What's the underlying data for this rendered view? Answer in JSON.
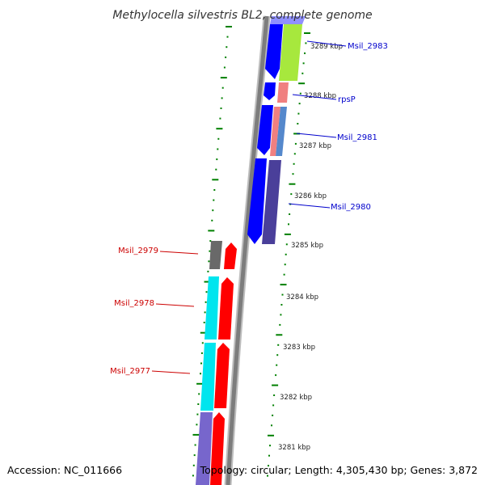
{
  "title": "Methylocella silvestris BL2, complete genome",
  "accession": "Accession: NC_011666",
  "topology": "Topology: circular; Length: 4,305,430 bp; Genes: 3,872",
  "colors": {
    "plus_strand": "#0000ff",
    "minus_strand": "#ff0000",
    "plus_label": "#0000cc",
    "minus_label": "#cc0000",
    "backbone": "#808080",
    "tick": "#008000"
  },
  "kbp_ticks": [
    {
      "label": "3289 kbp",
      "value": 3289
    },
    {
      "label": "3288 kbp",
      "value": 3288
    },
    {
      "label": "3287 kbp",
      "value": 3287
    },
    {
      "label": "3286 kbp",
      "value": 3286
    },
    {
      "label": "3285 kbp",
      "value": 3285
    },
    {
      "label": "3284 kbp",
      "value": 3284
    },
    {
      "label": "3283 kbp",
      "value": 3283
    },
    {
      "label": "3282 kbp",
      "value": 3282
    },
    {
      "label": "3281 kbp",
      "value": 3281
    }
  ],
  "genes_plus": [
    {
      "name": "Msil_2983"
    },
    {
      "name": "rpsP"
    },
    {
      "name": "Msil_2981"
    },
    {
      "name": "Msil_2980"
    }
  ],
  "genes_minus": [
    {
      "name": "Msil_2979"
    },
    {
      "name": "Msil_2978"
    },
    {
      "name": "Msil_2977"
    }
  ]
}
